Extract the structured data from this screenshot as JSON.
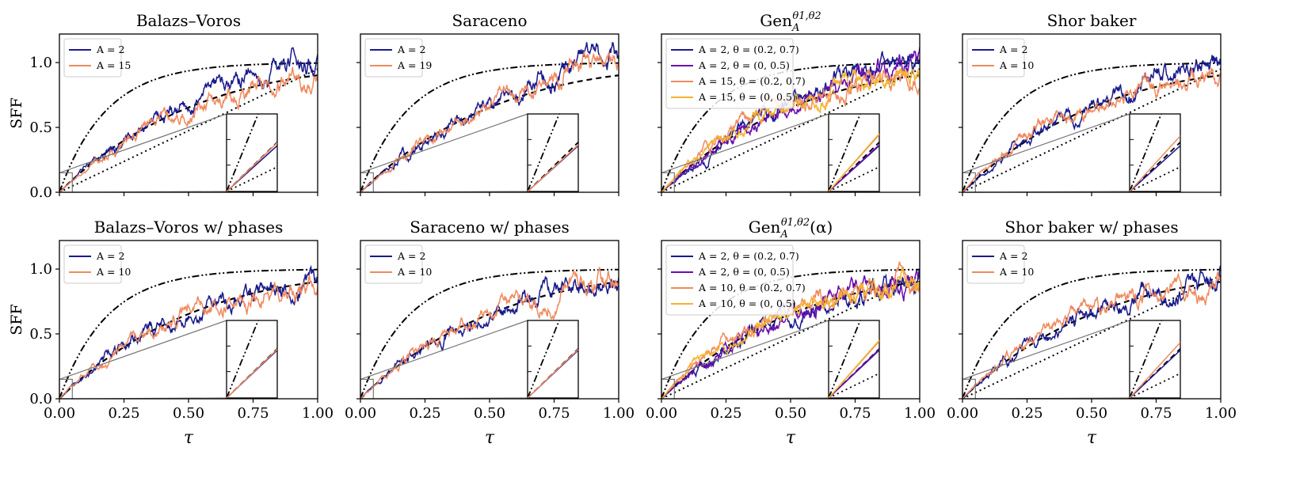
{
  "figure": {
    "y_axis_label": "SFF",
    "x_axis_label": "τ",
    "x_ticks": [
      "0.00",
      "0.25",
      "0.50",
      "0.75",
      "1.00"
    ],
    "y_ticks": [
      "0.0",
      "0.5",
      "1.0"
    ],
    "colors": {
      "navy": "#1a1a8c",
      "salmon": "#ef8a5f",
      "purple": "#6a0dad",
      "amber": "#f5b331",
      "ref": "#000000",
      "inset_guide": "#777777"
    }
  },
  "chart_data": [
    {
      "type": "line",
      "title": "Balazs–Voros",
      "title_sup": "",
      "xlabel": "τ",
      "ylabel": "SFF",
      "xlim": [
        0,
        1
      ],
      "ylim": [
        0,
        1.22
      ],
      "legend": [
        "A = 2",
        "A = 15"
      ],
      "series": [
        {
          "name": "A = 2",
          "color": "navy",
          "curve": "gue",
          "seed": 11
        },
        {
          "name": "A = 15",
          "color": "salmon",
          "curve": "goe",
          "seed": 12
        }
      ],
      "reference_curves": [
        "goe",
        "cue-like",
        "poisson"
      ],
      "inset": {
        "x_range": [
          0,
          0.05
        ],
        "y_range": [
          0,
          0.15
        ]
      }
    },
    {
      "type": "line",
      "title": "Saraceno",
      "title_sup": "",
      "xlabel": "τ",
      "ylabel": "SFF",
      "xlim": [
        0,
        1
      ],
      "ylim": [
        0,
        1.22
      ],
      "legend": [
        "A = 2",
        "A = 19"
      ],
      "series": [
        {
          "name": "A = 2",
          "color": "navy",
          "curve": "gue",
          "seed": 21
        },
        {
          "name": "A = 19",
          "color": "salmon",
          "curve": "gue",
          "seed": 22
        }
      ],
      "reference_curves": [
        "goe",
        "cue-like"
      ],
      "inset": {
        "x_range": [
          0,
          0.05
        ],
        "y_range": [
          0,
          0.15
        ]
      }
    },
    {
      "type": "line",
      "title": "Gen",
      "title_sup": "θ1,θ2",
      "title_sub": "A",
      "title_suffix": "",
      "xlabel": "τ",
      "ylabel": "SFF",
      "xlim": [
        0,
        1
      ],
      "ylim": [
        0,
        1.22
      ],
      "legend": [
        "A = 2, θ = (0.2, 0.7)",
        "A = 2, θ = (0, 0.5)",
        "A = 15, θ = (0.2, 0.7)",
        "A = 15, θ = (0, 0.5)"
      ],
      "series": [
        {
          "name": "A = 2, θ = (0.2, 0.7)",
          "color": "navy",
          "curve": "gue",
          "seed": 31
        },
        {
          "name": "A = 2, θ = (0, 0.5)",
          "color": "purple",
          "curve": "gue",
          "seed": 32
        },
        {
          "name": "A = 15, θ = (0.2, 0.7)",
          "color": "salmon",
          "curve": "mid",
          "seed": 33
        },
        {
          "name": "A = 15, θ = (0, 0.5)",
          "color": "amber",
          "curve": "mid",
          "seed": 34
        }
      ],
      "reference_curves": [
        "goe",
        "cue-like",
        "poisson"
      ],
      "inset": {
        "x_range": [
          0,
          0.05
        ],
        "y_range": [
          0,
          0.15
        ]
      }
    },
    {
      "type": "line",
      "title": "Shor baker",
      "title_sup": "",
      "xlabel": "τ",
      "ylabel": "SFF",
      "xlim": [
        0,
        1
      ],
      "ylim": [
        0,
        1.22
      ],
      "legend": [
        "A = 2",
        "A = 10"
      ],
      "series": [
        {
          "name": "A = 2",
          "color": "navy",
          "curve": "gue",
          "seed": 41
        },
        {
          "name": "A = 10",
          "color": "salmon",
          "curve": "mid",
          "seed": 42
        }
      ],
      "reference_curves": [
        "goe",
        "cue-like",
        "poisson"
      ],
      "inset": {
        "x_range": [
          0,
          0.05
        ],
        "y_range": [
          0,
          0.15
        ]
      }
    },
    {
      "type": "line",
      "title": "Balazs–Voros w/ phases",
      "title_sup": "",
      "xlabel": "τ",
      "ylabel": "SFF",
      "xlim": [
        0,
        1
      ],
      "ylim": [
        0,
        1.22
      ],
      "legend": [
        "A = 2",
        "A = 10"
      ],
      "series": [
        {
          "name": "A = 2",
          "color": "navy",
          "curve": "goe",
          "seed": 51
        },
        {
          "name": "A = 10",
          "color": "salmon",
          "curve": "goe",
          "seed": 52
        }
      ],
      "reference_curves": [
        "goe",
        "cue-like"
      ],
      "inset": {
        "x_range": [
          0,
          0.05
        ],
        "y_range": [
          0,
          0.15
        ]
      }
    },
    {
      "type": "line",
      "title": "Saraceno w/ phases",
      "title_sup": "",
      "xlabel": "τ",
      "ylabel": "SFF",
      "xlim": [
        0,
        1
      ],
      "ylim": [
        0,
        1.22
      ],
      "legend": [
        "A = 2",
        "A = 10"
      ],
      "series": [
        {
          "name": "A = 2",
          "color": "navy",
          "curve": "goe",
          "seed": 61
        },
        {
          "name": "A = 10",
          "color": "salmon",
          "curve": "goe",
          "seed": 62
        }
      ],
      "reference_curves": [
        "goe",
        "cue-like"
      ],
      "inset": {
        "x_range": [
          0,
          0.05
        ],
        "y_range": [
          0,
          0.15
        ]
      }
    },
    {
      "type": "line",
      "title": "Gen",
      "title_sup": "θ1,θ2",
      "title_sub": "A",
      "title_suffix": "(α)",
      "xlabel": "τ",
      "ylabel": "SFF",
      "xlim": [
        0,
        1
      ],
      "ylim": [
        0,
        1.22
      ],
      "legend": [
        "A = 2, θ = (0.2, 0.7)",
        "A = 2, θ = (0, 0.5)",
        "A = 10, θ = (0.2, 0.7)",
        "A = 10, θ = (0, 0.5)"
      ],
      "series": [
        {
          "name": "A = 2, θ = (0.2, 0.7)",
          "color": "navy",
          "curve": "goe",
          "seed": 71
        },
        {
          "name": "A = 2, θ = (0, 0.5)",
          "color": "purple",
          "curve": "goe",
          "seed": 72
        },
        {
          "name": "A = 10, θ = (0.2, 0.7)",
          "color": "salmon",
          "curve": "mid",
          "seed": 73
        },
        {
          "name": "A = 10, θ = (0, 0.5)",
          "color": "amber",
          "curve": "mid",
          "seed": 74
        }
      ],
      "reference_curves": [
        "goe",
        "cue-like",
        "poisson"
      ],
      "inset": {
        "x_range": [
          0,
          0.05
        ],
        "y_range": [
          0,
          0.15
        ]
      }
    },
    {
      "type": "line",
      "title": "Shor baker w/ phases",
      "title_sup": "",
      "xlabel": "τ",
      "ylabel": "SFF",
      "xlim": [
        0,
        1
      ],
      "ylim": [
        0,
        1.22
      ],
      "legend": [
        "A = 2",
        "A = 10"
      ],
      "series": [
        {
          "name": "A = 2",
          "color": "navy",
          "curve": "goe",
          "seed": 81
        },
        {
          "name": "A = 10",
          "color": "salmon",
          "curve": "mid",
          "seed": 82
        }
      ],
      "reference_curves": [
        "goe",
        "cue-like",
        "poisson"
      ],
      "inset": {
        "x_range": [
          0,
          0.05
        ],
        "y_range": [
          0,
          0.15
        ]
      }
    }
  ]
}
